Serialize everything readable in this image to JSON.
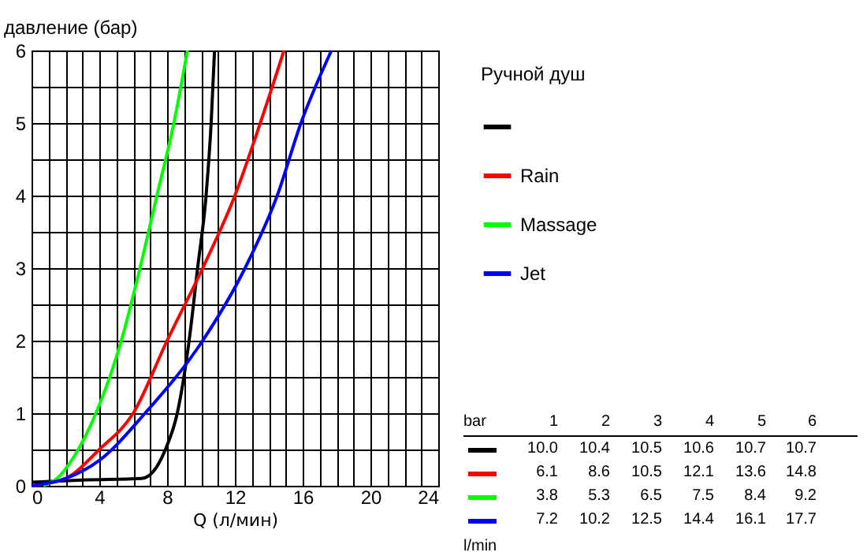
{
  "chart_data": {
    "type": "line",
    "xlabel": "Q (л/мин)",
    "ylabel": "давление (бар)",
    "legend_title": "Ручной душ",
    "legend": "right",
    "grid": true,
    "xlim": [
      0,
      24
    ],
    "ylim": [
      0,
      6
    ],
    "xticks": [
      0,
      {
        "value": 1,
        "label": null
      },
      {
        "value": 2,
        "label": null
      },
      {
        "value": 3,
        "label": null
      },
      4,
      {
        "value": 5,
        "label": null
      },
      {
        "value": 6,
        "label": null
      },
      {
        "value": 7,
        "label": null
      },
      8,
      {
        "value": 9,
        "label": null
      },
      {
        "value": 10,
        "label": null
      },
      {
        "value": 11,
        "label": null
      },
      12,
      {
        "value": 13,
        "label": null
      },
      {
        "value": 14,
        "label": null
      },
      {
        "value": 15,
        "label": null
      },
      16,
      {
        "value": 17,
        "label": null
      },
      {
        "value": 18,
        "label": null
      },
      {
        "value": 19,
        "label": null
      },
      20,
      {
        "value": 21,
        "label": null
      },
      {
        "value": 22,
        "label": null
      },
      {
        "value": 23,
        "label": null
      },
      24
    ],
    "yticks": [
      0,
      {
        "value": 0.5,
        "label": null
      },
      1,
      {
        "value": 1.5,
        "label": null
      },
      2,
      {
        "value": 2.5,
        "label": null
      },
      3,
      {
        "value": 3.5,
        "label": null
      },
      4,
      {
        "value": 4.5,
        "label": null
      },
      5,
      {
        "value": 5.5,
        "label": null
      },
      6
    ],
    "series": [
      {
        "color": "#000000",
        "x": [
          0,
          3,
          6.5,
          7.2,
          7.9,
          8.6,
          9.3,
          9.8,
          10.3,
          10.6,
          10.8
        ],
        "values": [
          0.05,
          0.08,
          0.1,
          0.2,
          0.5,
          1,
          2,
          3,
          4,
          5,
          6
        ]
      },
      {
        "name": "Rain",
        "color": "#ff0000",
        "x": [
          0,
          2,
          4,
          6,
          8,
          10.1,
          12,
          13.5,
          14.9
        ],
        "values": [
          0,
          0.1,
          0.5,
          1,
          2,
          3,
          4,
          5,
          6
        ]
      },
      {
        "name": "Massage",
        "color": "#00ff00",
        "x": [
          0.7,
          1.5,
          2.5,
          3.8,
          5.3,
          6.4,
          7.4,
          8.4,
          9.2
        ],
        "values": [
          0,
          0.1,
          0.4,
          1,
          2,
          3,
          4,
          5,
          6
        ]
      },
      {
        "name": "Jet",
        "color": "#0000ff",
        "x": [
          0,
          2,
          4,
          6.7,
          10.1,
          12.6,
          14.5,
          15.9,
          17.7
        ],
        "values": [
          0,
          0.1,
          0.35,
          1,
          2,
          3,
          4,
          5,
          6
        ]
      }
    ],
    "annotations": [
      "bar",
      "1",
      "2",
      "3",
      "4",
      "5",
      "6",
      "10.0",
      "10.4",
      "10.5",
      "10.6",
      "10.7",
      "10.7",
      "6.1",
      "8.6",
      "10.5",
      "12.1",
      "13.6",
      "14.8",
      "3.8",
      "5.3",
      "6.5",
      "7.5",
      "8.4",
      "9.2",
      "7.2",
      "10.2",
      "12.5",
      "14.4",
      "16.1",
      "17.7",
      "l/min"
    ]
  }
}
